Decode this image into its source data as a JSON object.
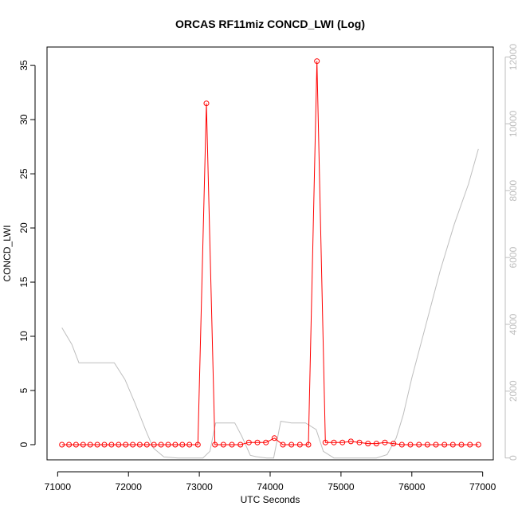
{
  "chart_data": {
    "type": "line",
    "title": "ORCAS RF11miz CONCD_LWI (Log)",
    "xlabel": "UTC Seconds",
    "ylabel": "CONCD_LWI",
    "xlim": [
      70850,
      77150
    ],
    "ylim": [
      -1.4,
      36.7
    ],
    "y2lim": [
      -55,
      12300
    ],
    "x_ticks": [
      71000,
      72000,
      73000,
      74000,
      75000,
      76000,
      77000
    ],
    "y_ticks": [
      0,
      5,
      10,
      15,
      20,
      25,
      30,
      35
    ],
    "y2_ticks": [
      0,
      2000,
      4000,
      6000,
      8000,
      10000,
      12000
    ],
    "grid": false,
    "colors": {
      "primary": "#ff0000",
      "secondary": "#bebebe",
      "axis": "#000000",
      "right_axis": "#bebebe"
    },
    "series": [
      {
        "axis": "left",
        "style": "line+points",
        "x": [
          71060,
          71160,
          71260,
          71360,
          71460,
          71560,
          71660,
          71760,
          71860,
          71960,
          72060,
          72160,
          72260,
          72360,
          72460,
          72560,
          72660,
          72760,
          72860,
          72980,
          73100,
          73220,
          73340,
          73460,
          73580,
          73700,
          73820,
          73940,
          74060,
          74180,
          74300,
          74420,
          74540,
          74660,
          74780,
          74900,
          75020,
          75140,
          75260,
          75380,
          75500,
          75620,
          75740,
          75860,
          75980,
          76100,
          76220,
          76340,
          76460,
          76580,
          76700,
          76820,
          76940
        ],
        "y": [
          0,
          0,
          0,
          0,
          0,
          0,
          0,
          0,
          0,
          0,
          0,
          0,
          0,
          0,
          0,
          0,
          0,
          0,
          0,
          0,
          31.5,
          0,
          0,
          0,
          0,
          0.2,
          0.2,
          0.2,
          0.6,
          0,
          0,
          0,
          0,
          35.4,
          0.2,
          0.2,
          0.2,
          0.3,
          0.2,
          0.1,
          0.1,
          0.2,
          0.1,
          0,
          0,
          0,
          0,
          0,
          0,
          0,
          0,
          0,
          0
        ]
      },
      {
        "axis": "right",
        "style": "line",
        "x": [
          71060,
          71200,
          71300,
          71500,
          71800,
          71950,
          72100,
          72250,
          72350,
          72500,
          72700,
          72900,
          73050,
          73150,
          73230,
          73500,
          73600,
          73720,
          73800,
          73950,
          74050,
          74150,
          74300,
          74500,
          74650,
          74750,
          74900,
          75100,
          75300,
          75500,
          75650,
          75780,
          75880,
          76000,
          76200,
          76400,
          76600,
          76800,
          76940
        ],
        "y": [
          3900,
          3400,
          2850,
          2850,
          2850,
          2350,
          1600,
          800,
          300,
          30,
          0,
          0,
          0,
          200,
          1050,
          1050,
          650,
          80,
          40,
          0,
          0,
          1100,
          1050,
          1050,
          850,
          200,
          0,
          0,
          0,
          0,
          100,
          600,
          1300,
          2400,
          4000,
          5600,
          7000,
          8200,
          9250
        ]
      }
    ]
  }
}
